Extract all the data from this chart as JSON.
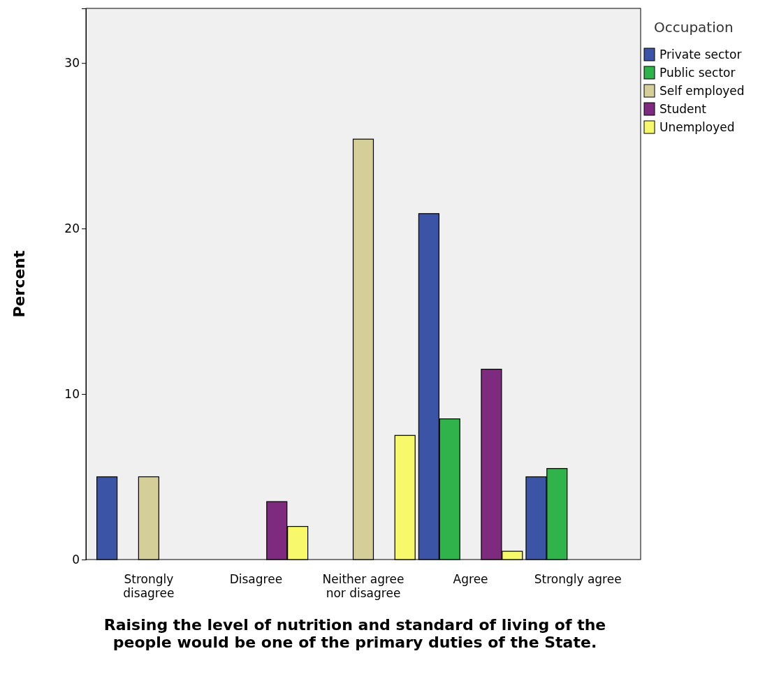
{
  "chart_data": {
    "type": "bar",
    "xlabel": "Raising the level of nutrition and standard of living of the people would be one of the primary duties of the State.",
    "ylabel": "Percent",
    "legend_title": "Occupation",
    "legend": "top right",
    "ylim": [
      0,
      33.3
    ],
    "yticks": [
      0,
      10,
      20,
      30
    ],
    "categories": [
      "Strongly disagree",
      "Disagree",
      "Neither agree nor disagree",
      "Agree",
      "Strongly agree"
    ],
    "series": [
      {
        "name": "Private sector",
        "color": "#3b54a5",
        "values": [
          5.0,
          0,
          0,
          20.9,
          5.0
        ]
      },
      {
        "name": "Public sector",
        "color": "#2fb34a",
        "values": [
          0,
          0,
          0,
          8.5,
          5.5
        ]
      },
      {
        "name": "Self employed",
        "color": "#d4cf98",
        "values": [
          5.0,
          0,
          25.4,
          0,
          0
        ]
      },
      {
        "name": "Student",
        "color": "#7e2a7f",
        "values": [
          0,
          3.5,
          0,
          11.5,
          0
        ]
      },
      {
        "name": "Unemployed",
        "color": "#f8f86b",
        "values": [
          0,
          2.0,
          7.5,
          0.5,
          0
        ]
      }
    ]
  }
}
